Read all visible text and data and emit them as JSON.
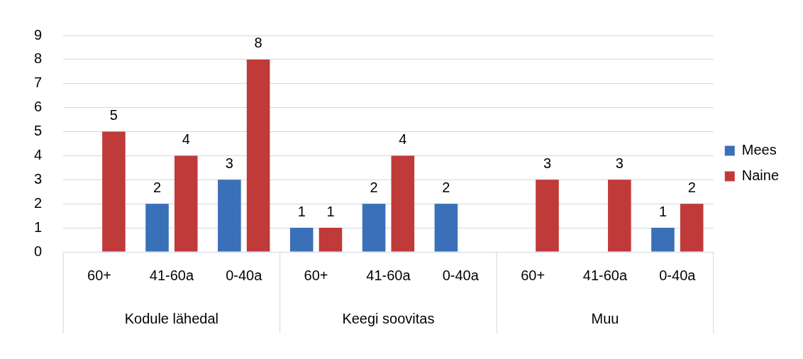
{
  "chart_data": {
    "type": "bar",
    "categories": [
      "60+",
      "41-60a",
      "0-40a",
      "60+",
      "41-60a",
      "0-40a",
      "60+",
      "41-60a",
      "0-40a"
    ],
    "series": [
      {
        "name": "Mees",
        "color": "#3a70b8",
        "values": [
          null,
          2,
          3,
          1,
          2,
          2,
          null,
          null,
          1
        ]
      },
      {
        "name": "Naine",
        "color": "#c03a3a",
        "values": [
          5,
          4,
          8,
          1,
          4,
          null,
          3,
          3,
          2
        ]
      }
    ],
    "annotations": [
      "Kodule lähedal",
      "Keegi soovitas",
      "Muu"
    ],
    "ylim": [
      0,
      9
    ],
    "yticks": [
      0,
      1,
      2,
      3,
      4,
      5,
      6,
      7,
      8,
      9
    ],
    "grid": "y",
    "legend": "right",
    "data_labels": true
  }
}
